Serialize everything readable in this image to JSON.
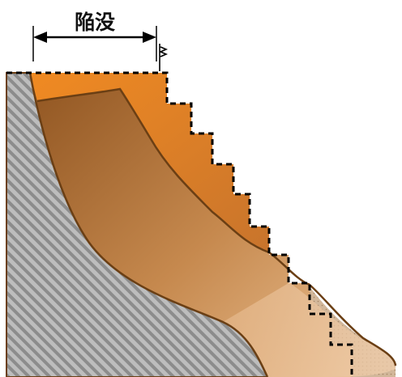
{
  "diagram": {
    "dimension_label": "陥没",
    "colors": {
      "bedrock_stripe": "#8a8a8a",
      "bedrock_bg": "#b9b9b9",
      "slide_dark": "#a86a2e",
      "slide_light": "#e3ad7a",
      "surface_band": "#ec8a2a",
      "debris_fill": "#c9aa8c",
      "outline": "#6b3f14",
      "dashed_line": "#000000"
    }
  }
}
